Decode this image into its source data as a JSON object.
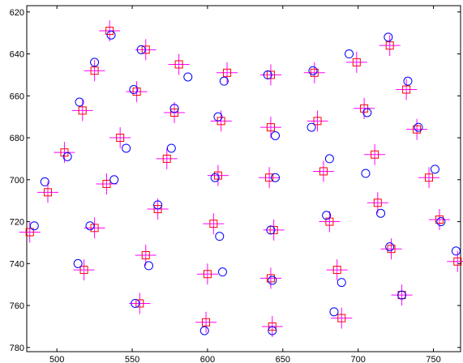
{
  "chart_data": {
    "type": "scatter",
    "title": "",
    "xlabel": "",
    "ylabel": "",
    "xlim": [
      480,
      768
    ],
    "ylim": [
      782,
      617
    ],
    "y_reversed": true,
    "grid": false,
    "x_ticks": [
      500,
      550,
      600,
      650,
      700,
      750
    ],
    "y_ticks": [
      620,
      640,
      660,
      680,
      700,
      720,
      740,
      760,
      780
    ],
    "x_tick_labels": [
      "500",
      "550",
      "600",
      "650",
      "700",
      "750"
    ],
    "y_tick_labels": [
      "620",
      "640",
      "660",
      "680",
      "700",
      "720",
      "740",
      "760",
      "780"
    ],
    "colors": {
      "circles": "#0000ff",
      "crosses": "#ff00ff",
      "squares": "#ff0000",
      "axes": "#000000"
    },
    "series": [
      {
        "marker": "circle",
        "points": [
          [
            536,
            631
          ],
          [
            556,
            638
          ],
          [
            525,
            644
          ],
          [
            587,
            651
          ],
          [
            611,
            653
          ],
          [
            640,
            650
          ],
          [
            670,
            648
          ],
          [
            694,
            640
          ],
          [
            720,
            632
          ],
          [
            733,
            653
          ],
          [
            515,
            663
          ],
          [
            551,
            657
          ],
          [
            578,
            666
          ],
          [
            607,
            670
          ],
          [
            645,
            679
          ],
          [
            669,
            675
          ],
          [
            706,
            668
          ],
          [
            740,
            675
          ],
          [
            507,
            689
          ],
          [
            546,
            685
          ],
          [
            576,
            685
          ],
          [
            605,
            699
          ],
          [
            645,
            699
          ],
          [
            681,
            690
          ],
          [
            705,
            697
          ],
          [
            751,
            695
          ],
          [
            492,
            701
          ],
          [
            538,
            700
          ],
          [
            567,
            712
          ],
          [
            608,
            727
          ],
          [
            642,
            724
          ],
          [
            679,
            717
          ],
          [
            715,
            716
          ],
          [
            755,
            720
          ],
          [
            765,
            734
          ],
          [
            485,
            722
          ],
          [
            522,
            722
          ],
          [
            514,
            740
          ],
          [
            561,
            741
          ],
          [
            610,
            744
          ],
          [
            643,
            748
          ],
          [
            689,
            749
          ],
          [
            721,
            732
          ],
          [
            729,
            755
          ],
          [
            552,
            759
          ],
          [
            598,
            772
          ],
          [
            643,
            772
          ],
          [
            684,
            763
          ]
        ]
      },
      {
        "marker": "cross-square",
        "points": [
          [
            535,
            629
          ],
          [
            559,
            638
          ],
          [
            525,
            648
          ],
          [
            581,
            645
          ],
          [
            613,
            649
          ],
          [
            642,
            650
          ],
          [
            671,
            649
          ],
          [
            699,
            644
          ],
          [
            721,
            636
          ],
          [
            732,
            657
          ],
          [
            517,
            667
          ],
          [
            553,
            658
          ],
          [
            578,
            668
          ],
          [
            609,
            672
          ],
          [
            642,
            675
          ],
          [
            673,
            672
          ],
          [
            704,
            666
          ],
          [
            739,
            676
          ],
          [
            505,
            687
          ],
          [
            542,
            680
          ],
          [
            573,
            690
          ],
          [
            607,
            698
          ],
          [
            641,
            699
          ],
          [
            677,
            696
          ],
          [
            711,
            688
          ],
          [
            747,
            699
          ],
          [
            494,
            706
          ],
          [
            533,
            702
          ],
          [
            567,
            714
          ],
          [
            604,
            721
          ],
          [
            644,
            724
          ],
          [
            681,
            720
          ],
          [
            713,
            711
          ],
          [
            754,
            719
          ],
          [
            766,
            739
          ],
          [
            482,
            725
          ],
          [
            525,
            723
          ],
          [
            518,
            743
          ],
          [
            559,
            736
          ],
          [
            600,
            745
          ],
          [
            642,
            747
          ],
          [
            686,
            743
          ],
          [
            722,
            733
          ],
          [
            729,
            755
          ],
          [
            555,
            759
          ],
          [
            599,
            768
          ],
          [
            643,
            770
          ],
          [
            689,
            766
          ]
        ]
      }
    ]
  }
}
